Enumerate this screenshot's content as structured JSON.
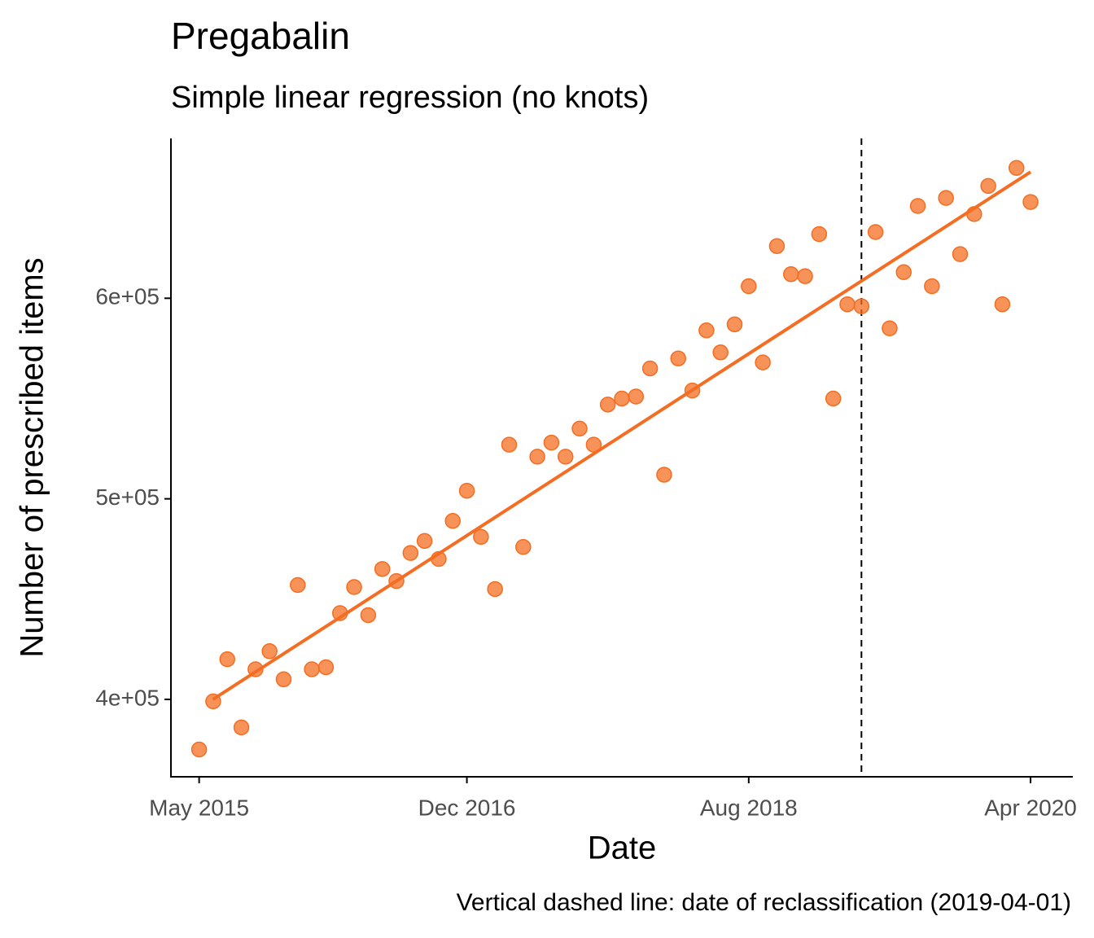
{
  "chart_data": {
    "type": "scatter",
    "title": "Pregabalin",
    "subtitle": "Simple linear regression (no knots)",
    "x_label": "Date",
    "y_label": "Number of prescribed items",
    "caption": "Vertical dashed line: date of reclassification (2019-04-01)",
    "x": [
      "2015-05",
      "2015-06",
      "2015-07",
      "2015-08",
      "2015-09",
      "2015-10",
      "2015-11",
      "2015-12",
      "2016-01",
      "2016-02",
      "2016-03",
      "2016-04",
      "2016-05",
      "2016-06",
      "2016-07",
      "2016-08",
      "2016-09",
      "2016-10",
      "2016-11",
      "2016-12",
      "2017-01",
      "2017-02",
      "2017-03",
      "2017-04",
      "2017-05",
      "2017-06",
      "2017-07",
      "2017-08",
      "2017-09",
      "2017-10",
      "2017-11",
      "2017-12",
      "2018-01",
      "2018-02",
      "2018-03",
      "2018-04",
      "2018-05",
      "2018-06",
      "2018-07",
      "2018-08",
      "2018-09",
      "2018-10",
      "2018-11",
      "2018-12",
      "2019-01",
      "2019-02",
      "2019-03",
      "2019-04",
      "2019-05",
      "2019-06",
      "2019-07",
      "2019-08",
      "2019-09",
      "2019-10",
      "2019-11",
      "2019-12",
      "2020-01",
      "2020-02",
      "2020-03",
      "2020-04"
    ],
    "series": [
      {
        "color": "#f46d22",
        "values": [
          375000,
          399000,
          420000,
          386000,
          415000,
          424000,
          410000,
          457000,
          415000,
          416000,
          443000,
          456000,
          442000,
          465000,
          459000,
          473000,
          479000,
          470000,
          489000,
          504000,
          481000,
          455000,
          527000,
          476000,
          521000,
          528000,
          521000,
          535000,
          527000,
          547000,
          550000,
          551000,
          565000,
          512000,
          570000,
          554000,
          584000,
          573000,
          587000,
          606000,
          568000,
          626000,
          612000,
          611000,
          632000,
          550000,
          597000,
          596000,
          633000,
          585000,
          613000,
          646000,
          606000,
          650000,
          622000,
          642000,
          656000,
          597000,
          665000,
          648000
        ]
      }
    ],
    "fit_line": {
      "x": [
        "2015-05",
        "2020-04"
      ],
      "values": [
        400000,
        663000
      ],
      "color": "#f46d22"
    },
    "vline_x": "2019-04",
    "xlim": [
      "2015-03",
      "2020-07"
    ],
    "xticks": [
      {
        "value": "2015-05",
        "label": "May 2015"
      },
      {
        "value": "2016-12",
        "label": "Dec 2016"
      },
      {
        "value": "2018-08",
        "label": "Aug 2018"
      },
      {
        "value": "2020-04",
        "label": "Apr 2020"
      }
    ],
    "ylim": [
      361400,
      679700
    ],
    "yticks": [
      {
        "value": 400000,
        "label": "4e+05"
      },
      {
        "value": 500000,
        "label": "5e+05"
      },
      {
        "value": 600000,
        "label": "6e+05"
      }
    ],
    "grid": false
  }
}
